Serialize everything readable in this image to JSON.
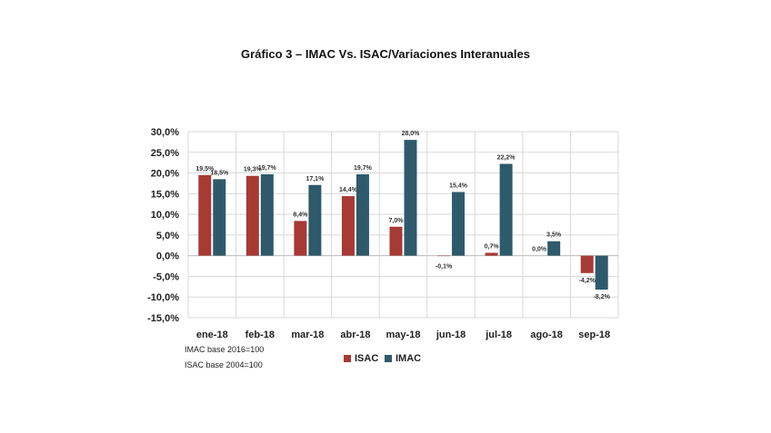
{
  "chart_data": {
    "type": "bar",
    "title": "Gráfico 3 – IMAC Vs. ISAC/Variaciones Interanuales",
    "categories": [
      "ene-18",
      "feb-18",
      "mar-18",
      "abr-18",
      "may-18",
      "jun-18",
      "jul-18",
      "ago-18",
      "sep-18"
    ],
    "series": [
      {
        "name": "ISAC",
        "color": "#a63a35",
        "values": [
          19.5,
          19.3,
          8.4,
          14.4,
          7.0,
          -0.1,
          0.7,
          0.0,
          -4.2
        ],
        "labels": [
          "19,5%",
          "19,3%",
          "8,4%",
          "14,4%",
          "7,0%",
          "-0,1%",
          "0,7%",
          "0,0%",
          "-4,2%"
        ]
      },
      {
        "name": "IMAC",
        "color": "#2e5a6b",
        "values": [
          18.5,
          19.7,
          17.1,
          19.7,
          28.0,
          15.4,
          22.2,
          3.5,
          -8.2
        ],
        "labels": [
          "18,5%",
          "19,7%",
          "17,1%",
          "19,7%",
          "28,0%",
          "15,4%",
          "22,2%",
          "3,5%",
          "-8,2%"
        ]
      }
    ],
    "ylim": [
      -15,
      30
    ],
    "yticks": [
      30,
      25,
      20,
      15,
      10,
      5,
      0,
      -5,
      -10,
      -15
    ],
    "ytick_labels": [
      "30,0%",
      "25,0%",
      "20,0%",
      "15,0%",
      "10,0%",
      "5,0%",
      "0,0%",
      "-5,0%",
      "-10,0%",
      "-15,0%"
    ],
    "grid": true,
    "legend_position": "bottom-center",
    "notes": [
      "IMAC base 2016=100",
      "ISAC base 2004=100"
    ]
  }
}
